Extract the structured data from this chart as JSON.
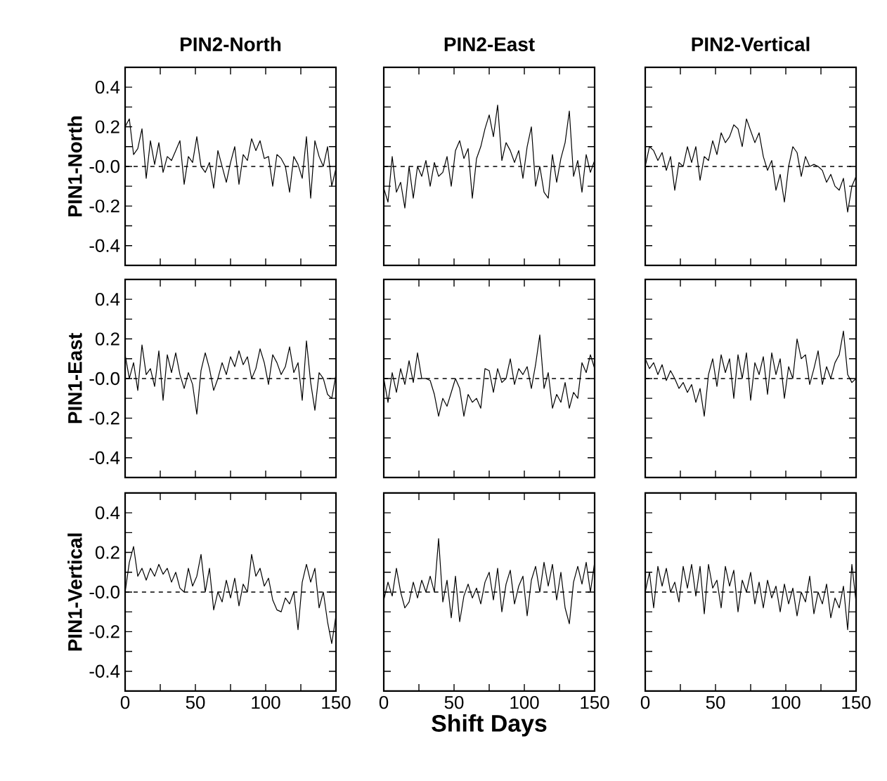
{
  "chart_data": [
    {
      "type": "line",
      "title": "PIN2-North",
      "ylabel": "PIN1-North",
      "tick_labels": "y",
      "color": "#000000",
      "xlim": [
        0,
        150
      ],
      "ylim": [
        -0.5,
        0.5
      ],
      "xticks": [
        0,
        25,
        50,
        75,
        100,
        125,
        150
      ],
      "yticks": [
        -0.4,
        {
          "value": -0.3,
          "label": null
        },
        -0.2,
        {
          "value": -0.1,
          "label": null
        },
        {
          "value": 0,
          "label": "-0.0"
        },
        {
          "value": 0.1,
          "label": null
        },
        0.2,
        {
          "value": 0.3,
          "label": null
        },
        0.4
      ],
      "ref_lines": [
        {
          "axis": "y",
          "value": 0,
          "line_style": "dashed"
        }
      ],
      "x": [
        0,
        3,
        6,
        9,
        12,
        15,
        18,
        21,
        24,
        27,
        30,
        33,
        36,
        39,
        42,
        45,
        48,
        51,
        54,
        57,
        60,
        63,
        66,
        69,
        72,
        75,
        78,
        81,
        84,
        87,
        90,
        93,
        96,
        99,
        102,
        105,
        108,
        111,
        114,
        117,
        120,
        123,
        126,
        129,
        132,
        135,
        138,
        141,
        144,
        147,
        150
      ],
      "values": [
        0.2,
        0.24,
        0.06,
        0.09,
        0.19,
        -0.06,
        0.13,
        0.01,
        0.12,
        -0.03,
        0.05,
        0.03,
        0.08,
        0.13,
        -0.09,
        0.05,
        0.02,
        0.15,
        0.0,
        -0.03,
        0.02,
        -0.11,
        0.08,
        0.0,
        -0.08,
        0.02,
        0.1,
        -0.09,
        0.06,
        0.03,
        0.14,
        0.08,
        0.13,
        0.04,
        0.05,
        -0.1,
        0.06,
        0.04,
        0.0,
        -0.13,
        0.05,
        0.01,
        -0.06,
        0.15,
        -0.16,
        0.13,
        0.05,
        0.0,
        0.1,
        -0.1,
        -0.01
      ]
    },
    {
      "type": "line",
      "title": "PIN2-East",
      "tick_labels": false,
      "color": "#000000",
      "xlim": [
        0,
        150
      ],
      "ylim": [
        -0.5,
        0.5
      ],
      "xticks": [
        0,
        25,
        50,
        75,
        100,
        125,
        150
      ],
      "yticks": [
        -0.4,
        -0.3,
        -0.2,
        -0.1,
        0,
        0.1,
        0.2,
        0.3,
        0.4
      ],
      "ref_lines": [
        {
          "axis": "y",
          "value": 0,
          "line_style": "dashed"
        }
      ],
      "x": [
        0,
        3,
        6,
        9,
        12,
        15,
        18,
        21,
        24,
        27,
        30,
        33,
        36,
        39,
        42,
        45,
        48,
        51,
        54,
        57,
        60,
        63,
        66,
        69,
        72,
        75,
        78,
        81,
        84,
        87,
        90,
        93,
        96,
        99,
        102,
        105,
        108,
        111,
        114,
        117,
        120,
        123,
        126,
        129,
        132,
        135,
        138,
        141,
        144,
        147,
        150
      ],
      "values": [
        -0.11,
        -0.18,
        0.05,
        -0.13,
        -0.08,
        -0.21,
        0.0,
        -0.16,
        0.0,
        -0.05,
        0.03,
        -0.1,
        0.02,
        -0.05,
        -0.03,
        0.05,
        -0.1,
        0.08,
        0.13,
        0.04,
        0.09,
        -0.16,
        0.04,
        0.1,
        0.19,
        0.26,
        0.15,
        0.31,
        0.03,
        0.12,
        0.08,
        0.02,
        0.08,
        -0.06,
        0.1,
        0.2,
        -0.1,
        0.0,
        -0.13,
        -0.16,
        0.06,
        -0.08,
        0.04,
        0.12,
        0.28,
        -0.05,
        0.03,
        -0.13,
        0.06,
        -0.03,
        0.03
      ]
    },
    {
      "type": "line",
      "title": "PIN2-Vertical",
      "tick_labels": false,
      "color": "#000000",
      "xlim": [
        0,
        150
      ],
      "ylim": [
        -0.5,
        0.5
      ],
      "xticks": [
        0,
        25,
        50,
        75,
        100,
        125,
        150
      ],
      "yticks": [
        -0.4,
        -0.3,
        -0.2,
        -0.1,
        0,
        0.1,
        0.2,
        0.3,
        0.4
      ],
      "ref_lines": [
        {
          "axis": "y",
          "value": 0,
          "line_style": "dashed"
        }
      ],
      "x": [
        0,
        3,
        6,
        9,
        12,
        15,
        18,
        21,
        24,
        27,
        30,
        33,
        36,
        39,
        42,
        45,
        48,
        51,
        54,
        57,
        60,
        63,
        66,
        69,
        72,
        75,
        78,
        81,
        84,
        87,
        90,
        93,
        96,
        99,
        102,
        105,
        108,
        111,
        114,
        117,
        120,
        123,
        126,
        129,
        132,
        135,
        138,
        141,
        144,
        147,
        150
      ],
      "values": [
        0.0,
        0.1,
        0.08,
        0.03,
        0.07,
        -0.02,
        0.05,
        -0.12,
        0.02,
        0.0,
        0.1,
        0.02,
        0.1,
        -0.07,
        0.05,
        0.03,
        0.13,
        0.06,
        0.17,
        0.12,
        0.15,
        0.21,
        0.19,
        0.1,
        0.24,
        0.18,
        0.12,
        0.17,
        0.05,
        -0.02,
        0.03,
        -0.12,
        -0.04,
        -0.18,
        0.0,
        0.1,
        0.07,
        -0.05,
        0.05,
        0.0,
        0.01,
        0.0,
        -0.02,
        -0.08,
        -0.04,
        -0.1,
        -0.12,
        -0.06,
        -0.23,
        -0.1,
        -0.05
      ]
    },
    {
      "type": "line",
      "ylabel": "PIN1-East",
      "tick_labels": "y",
      "color": "#000000",
      "xlim": [
        0,
        150
      ],
      "ylim": [
        -0.5,
        0.5
      ],
      "xticks": [
        0,
        25,
        50,
        75,
        100,
        125,
        150
      ],
      "yticks": [
        -0.4,
        {
          "value": -0.3,
          "label": null
        },
        -0.2,
        {
          "value": -0.1,
          "label": null
        },
        {
          "value": 0,
          "label": "-0.0"
        },
        {
          "value": 0.1,
          "label": null
        },
        0.2,
        {
          "value": 0.3,
          "label": null
        },
        0.4
      ],
      "ref_lines": [
        {
          "axis": "y",
          "value": 0,
          "line_style": "dashed"
        }
      ],
      "x": [
        0,
        3,
        6,
        9,
        12,
        15,
        18,
        21,
        24,
        27,
        30,
        33,
        36,
        39,
        42,
        45,
        48,
        51,
        54,
        57,
        60,
        63,
        66,
        69,
        72,
        75,
        78,
        81,
        84,
        87,
        90,
        93,
        96,
        99,
        102,
        105,
        108,
        111,
        114,
        117,
        120,
        123,
        126,
        129,
        132,
        135,
        138,
        141,
        144,
        147,
        150
      ],
      "values": [
        0.12,
        0.0,
        0.08,
        -0.06,
        0.17,
        0.02,
        0.05,
        -0.04,
        0.14,
        -0.11,
        0.12,
        0.03,
        0.13,
        0.02,
        -0.05,
        0.03,
        -0.03,
        -0.18,
        0.04,
        0.13,
        0.05,
        -0.06,
        0.0,
        0.08,
        0.02,
        0.11,
        0.06,
        0.14,
        0.07,
        0.11,
        0.0,
        0.05,
        0.15,
        0.08,
        -0.03,
        0.12,
        0.08,
        0.02,
        0.06,
        0.16,
        0.03,
        0.08,
        -0.11,
        0.19,
        -0.02,
        -0.16,
        0.03,
        0.0,
        -0.08,
        -0.1,
        0.02
      ]
    },
    {
      "type": "line",
      "tick_labels": false,
      "color": "#000000",
      "xlim": [
        0,
        150
      ],
      "ylim": [
        -0.5,
        0.5
      ],
      "xticks": [
        0,
        25,
        50,
        75,
        100,
        125,
        150
      ],
      "yticks": [
        -0.4,
        -0.3,
        -0.2,
        -0.1,
        0,
        0.1,
        0.2,
        0.3,
        0.4
      ],
      "ref_lines": [
        {
          "axis": "y",
          "value": 0,
          "line_style": "dashed"
        }
      ],
      "x": [
        0,
        3,
        6,
        9,
        12,
        15,
        18,
        21,
        24,
        27,
        30,
        33,
        36,
        39,
        42,
        45,
        48,
        51,
        54,
        57,
        60,
        63,
        66,
        69,
        72,
        75,
        78,
        81,
        84,
        87,
        90,
        93,
        96,
        99,
        102,
        105,
        108,
        111,
        114,
        117,
        120,
        123,
        126,
        129,
        132,
        135,
        138,
        141,
        144,
        147,
        150
      ],
      "values": [
        0.0,
        -0.12,
        0.03,
        -0.07,
        0.05,
        -0.03,
        0.09,
        -0.02,
        0.13,
        0.0,
        0.0,
        -0.01,
        -0.08,
        -0.19,
        -0.1,
        -0.14,
        -0.07,
        0.0,
        -0.05,
        -0.19,
        -0.08,
        -0.12,
        -0.1,
        -0.15,
        0.05,
        0.04,
        -0.07,
        0.05,
        -0.02,
        0.0,
        0.1,
        -0.03,
        0.05,
        0.02,
        0.06,
        -0.05,
        0.07,
        0.22,
        -0.05,
        0.03,
        -0.15,
        -0.08,
        -0.12,
        -0.02,
        -0.15,
        -0.07,
        -0.1,
        0.08,
        0.03,
        0.12,
        0.05
      ]
    },
    {
      "type": "line",
      "tick_labels": false,
      "color": "#000000",
      "xlim": [
        0,
        150
      ],
      "ylim": [
        -0.5,
        0.5
      ],
      "xticks": [
        0,
        25,
        50,
        75,
        100,
        125,
        150
      ],
      "yticks": [
        -0.4,
        -0.3,
        -0.2,
        -0.1,
        0,
        0.1,
        0.2,
        0.3,
        0.4
      ],
      "ref_lines": [
        {
          "axis": "y",
          "value": 0,
          "line_style": "dashed"
        }
      ],
      "x": [
        0,
        3,
        6,
        9,
        12,
        15,
        18,
        21,
        24,
        27,
        30,
        33,
        36,
        39,
        42,
        45,
        48,
        51,
        54,
        57,
        60,
        63,
        66,
        69,
        72,
        75,
        78,
        81,
        84,
        87,
        90,
        93,
        96,
        99,
        102,
        105,
        108,
        111,
        114,
        117,
        120,
        123,
        126,
        129,
        132,
        135,
        138,
        141,
        144,
        147,
        150
      ],
      "values": [
        0.1,
        0.05,
        0.08,
        0.02,
        0.07,
        -0.01,
        0.04,
        0.0,
        -0.05,
        -0.02,
        -0.07,
        -0.03,
        -0.12,
        -0.05,
        -0.19,
        0.02,
        0.1,
        -0.04,
        0.12,
        0.03,
        0.1,
        -0.1,
        0.12,
        0.0,
        0.13,
        -0.11,
        0.08,
        0.02,
        0.11,
        -0.08,
        0.13,
        0.02,
        0.1,
        -0.1,
        0.06,
        0.0,
        0.2,
        0.1,
        0.12,
        -0.03,
        0.05,
        0.14,
        -0.03,
        0.06,
        0.0,
        0.08,
        0.12,
        0.24,
        0.02,
        -0.02,
        0.0
      ]
    },
    {
      "type": "line",
      "ylabel": "PIN1-Vertical",
      "color": "#000000",
      "xlim": [
        0,
        150
      ],
      "ylim": [
        -0.5,
        0.5
      ],
      "xticks": [
        0,
        {
          "value": 25,
          "label": null
        },
        50,
        {
          "value": 75,
          "label": null
        },
        100,
        {
          "value": 125,
          "label": null
        },
        150
      ],
      "yticks": [
        -0.4,
        {
          "value": -0.3,
          "label": null
        },
        -0.2,
        {
          "value": -0.1,
          "label": null
        },
        {
          "value": 0,
          "label": "-0.0"
        },
        {
          "value": 0.1,
          "label": null
        },
        0.2,
        {
          "value": 0.3,
          "label": null
        },
        0.4
      ],
      "ref_lines": [
        {
          "axis": "y",
          "value": 0,
          "line_style": "dashed"
        }
      ],
      "x": [
        0,
        3,
        6,
        9,
        12,
        15,
        18,
        21,
        24,
        27,
        30,
        33,
        36,
        39,
        42,
        45,
        48,
        51,
        54,
        57,
        60,
        63,
        66,
        69,
        72,
        75,
        78,
        81,
        84,
        87,
        90,
        93,
        96,
        99,
        102,
        105,
        108,
        111,
        114,
        117,
        120,
        123,
        126,
        129,
        132,
        135,
        138,
        141,
        144,
        147,
        150
      ],
      "values": [
        0.0,
        0.15,
        0.23,
        0.08,
        0.12,
        0.06,
        0.12,
        0.08,
        0.14,
        0.09,
        0.12,
        0.05,
        0.1,
        0.02,
        0.0,
        0.12,
        0.03,
        0.08,
        0.19,
        0.0,
        0.12,
        -0.09,
        0.0,
        -0.05,
        0.06,
        -0.03,
        0.07,
        -0.07,
        0.04,
        0.0,
        0.19,
        0.08,
        0.12,
        0.03,
        0.07,
        -0.04,
        -0.09,
        -0.1,
        -0.03,
        -0.06,
        0.0,
        -0.19,
        0.05,
        0.14,
        0.05,
        0.12,
        -0.08,
        0.0,
        -0.15,
        -0.26,
        -0.12
      ]
    },
    {
      "type": "line",
      "xlabel": "Shift Days",
      "tick_labels": "x",
      "color": "#000000",
      "xlim": [
        0,
        150
      ],
      "ylim": [
        -0.5,
        0.5
      ],
      "xticks": [
        0,
        {
          "value": 25,
          "label": null
        },
        50,
        {
          "value": 75,
          "label": null
        },
        100,
        {
          "value": 125,
          "label": null
        },
        150
      ],
      "yticks": [
        -0.4,
        -0.3,
        -0.2,
        -0.1,
        0,
        0.1,
        0.2,
        0.3,
        0.4
      ],
      "ref_lines": [
        {
          "axis": "y",
          "value": 0,
          "line_style": "dashed"
        }
      ],
      "x": [
        0,
        3,
        6,
        9,
        12,
        15,
        18,
        21,
        24,
        27,
        30,
        33,
        36,
        39,
        42,
        45,
        48,
        51,
        54,
        57,
        60,
        63,
        66,
        69,
        72,
        75,
        78,
        81,
        84,
        87,
        90,
        93,
        96,
        99,
        102,
        105,
        108,
        111,
        114,
        117,
        120,
        123,
        126,
        129,
        132,
        135,
        138,
        141,
        144,
        147,
        150
      ],
      "values": [
        -0.04,
        0.05,
        -0.02,
        0.12,
        0.0,
        -0.08,
        -0.05,
        0.05,
        -0.03,
        0.06,
        0.0,
        0.08,
        0.0,
        0.27,
        -0.05,
        0.06,
        -0.13,
        0.08,
        -0.15,
        -0.02,
        0.04,
        -0.03,
        0.02,
        -0.06,
        0.05,
        0.1,
        -0.04,
        0.12,
        -0.1,
        0.04,
        0.11,
        -0.06,
        0.03,
        0.08,
        -0.12,
        0.06,
        0.13,
        0.0,
        0.15,
        0.03,
        0.14,
        -0.04,
        0.1,
        -0.08,
        -0.16,
        0.05,
        0.13,
        0.04,
        0.15,
        0.0,
        0.15
      ]
    },
    {
      "type": "line",
      "tick_labels": "x",
      "color": "#000000",
      "xlim": [
        0,
        150
      ],
      "ylim": [
        -0.5,
        0.5
      ],
      "xticks": [
        0,
        {
          "value": 25,
          "label": null
        },
        50,
        {
          "value": 75,
          "label": null
        },
        100,
        {
          "value": 125,
          "label": null
        },
        150
      ],
      "yticks": [
        -0.4,
        -0.3,
        -0.2,
        -0.1,
        0,
        0.1,
        0.2,
        0.3,
        0.4
      ],
      "ref_lines": [
        {
          "axis": "y",
          "value": 0,
          "line_style": "dashed"
        }
      ],
      "x": [
        0,
        3,
        6,
        9,
        12,
        15,
        18,
        21,
        24,
        27,
        30,
        33,
        36,
        39,
        42,
        45,
        48,
        51,
        54,
        57,
        60,
        63,
        66,
        69,
        72,
        75,
        78,
        81,
        84,
        87,
        90,
        93,
        96,
        99,
        102,
        105,
        108,
        111,
        114,
        117,
        120,
        123,
        126,
        129,
        132,
        135,
        138,
        141,
        144,
        147,
        150
      ],
      "values": [
        0.0,
        0.1,
        -0.08,
        0.13,
        0.03,
        0.12,
        0.0,
        0.05,
        -0.05,
        0.13,
        0.02,
        0.14,
        -0.02,
        0.13,
        -0.11,
        0.14,
        0.02,
        0.06,
        -0.08,
        0.13,
        0.03,
        0.11,
        -0.1,
        0.06,
        0.0,
        0.1,
        -0.06,
        0.05,
        -0.08,
        0.06,
        -0.03,
        0.03,
        -0.1,
        0.04,
        -0.06,
        0.02,
        -0.12,
        0.0,
        -0.05,
        0.08,
        -0.11,
        0.0,
        -0.06,
        0.04,
        -0.13,
        -0.03,
        -0.08,
        0.03,
        -0.19,
        0.14,
        -0.05
      ]
    }
  ]
}
